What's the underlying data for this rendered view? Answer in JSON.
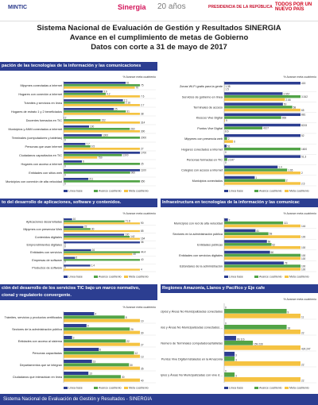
{
  "header": {
    "mintic_logo": "MINTIC",
    "sinergia_logo": "Sinergia",
    "sinergia_years": "20 años",
    "presidencia_logo": "PRESIDENCIA DE LA REPÚBLICA",
    "pais_logo_line1": "TODOS POR UN",
    "pais_logo_line2": "NUEVO PAÍS",
    "title_line1": "Sistema Nacional de Evaluación de Gestión y Resultados SINERGIA",
    "title_line2": "Avance en el cumplimiento de metas de Gobierno",
    "title_line3": "Datos con corte a 31 de mayo de 2017"
  },
  "sections": {
    "s1": "pación de las tecnologías de la información y las comunicaciones",
    "s2": "to del desarrollo de aplicaciones, software y contenidos.",
    "s3": "Infraestructura en tecnologías de la información y las comunicac",
    "s4": "ción del desarrollo de los servicios TIC bajo un marco normativo,",
    "s4b": "cional y regulatorio convergente.",
    "s5": "Regiones Amazonía, Llanos y Pacífico y Eje cafe"
  },
  "footer": {
    "text": "Sistema Nacional de Evaluación de Gestión y Resultados - SINERGIA"
  },
  "colors": {
    "linea_base": "#2c3e91",
    "avance": "#52a447",
    "meta": "#f5c342",
    "band": "#2c3e91",
    "red": "#d9261c"
  },
  "chart_data": [
    {
      "id": "c1",
      "type": "bar",
      "pct_header": "% Avance meta cuatrienio",
      "categories": [
        "Mipymes conectadas a internet",
        "Hogares con conexión a internet",
        "Trámites y servicios en línea",
        "Hogares de estrato 1 y 2 beneficiados",
        "Docentes formados en TIC",
        "Municipios y ANM conectados a internet",
        "Terminales (computadores y tabletas)",
        "Personas que usan internet",
        "Ciudadanos capacitados en TIC",
        "Hogares con acceso a internet",
        "Entidades con sitios web",
        "Municipios con conexión de alta velocidad"
      ],
      "series": [
        {
          "name": "Línea base",
          "values": [
            61,
            3.9,
            2.1,
            25,
            2,
            100,
            1000,
            7.7,
            1700,
            6,
            1100,
            211
          ]
        },
        {
          "name": "Avance cuatrienio",
          "values": [
            75,
            4.2,
            2.16,
            31,
            152,
            260,
            2000,
            9.5,
            1300,
            25,
            960,
            650
          ]
        },
        {
          "name": "Meta cuatrienio",
          "values": [
            70,
            7.6,
            2.7,
            38,
            314,
            300,
            0,
            27,
            750,
            0,
            0,
            0
          ]
        }
      ],
      "pct": [
        "",
        "",
        "",
        "",
        "",
        "",
        "",
        "",
        "",
        "",
        "",
        ""
      ],
      "legend": [
        "Línea base",
        "Avance cuatrienio",
        "Meta cuatrienio"
      ]
    },
    {
      "id": "c2",
      "type": "bar",
      "pct_header": "% Avance meta cuatrienio",
      "categories": [
        "Zonas Wi-Fi gratis para la gente",
        "Servicios de gobierno en línea",
        "Terminales de acceso",
        "Kioscos Vive Digital",
        "Puntos Vive Digital",
        "Mipymes con presencia web",
        "Hogares conectados a internet",
        "Personas formadas en TIC",
        "Colegios con acceso a internet",
        "Municipios conectados"
      ],
      "series": [
        {
          "name": "Línea base",
          "values": [
            415,
            2.557,
            50,
            881,
            8215,
            52,
            51,
            51.3,
            1.4,
            1.0
          ]
        },
        {
          "name": "Avance cuatrienio",
          "values": [
            1.38,
            3.342,
            58,
            658,
            4107,
            2,
            1600,
            2.047,
            1.65,
            2.0
          ]
        },
        {
          "name": "Meta cuatrienio",
          "values": [
            1.5,
            2.66,
            65,
            9,
            8.6,
            6,
            0,
            0,
            2.0,
            2.5
          ]
        }
      ],
      "pct": [
        "",
        "",
        "",
        "",
        "",
        "",
        "",
        "",
        "",
        ""
      ],
      "legend": [
        "Línea base",
        "Avance cuatrienio",
        "Meta cuatrienio"
      ]
    },
    {
      "id": "c3",
      "type": "bar",
      "pct_header": "% Avance meta cuatrienio",
      "categories": [
        "Aplicaciones desarrolladas",
        "Mipymes con presencia Web",
        "Contenidos digitales",
        "Emprendimientos digitales",
        "Entidades con servicios",
        "Empresas de software",
        "Productos de software"
      ],
      "series": [
        {
          "name": "Línea base",
          "values": [
            10,
            22,
            130,
            36,
            16,
            6,
            1.4
          ]
        },
        {
          "name": "Avance cuatrienio",
          "values": [
            71.8,
            30,
            142,
            0,
            44.4,
            40,
            0
          ]
        },
        {
          "name": "Meta cuatrienio",
          "values": [
            90,
            85,
            164,
            0,
            40,
            0,
            4.0
          ]
        }
      ],
      "pct": [
        "",
        "",
        "",
        "",
        "",
        "",
        ""
      ],
      "legend": [
        "Línea base",
        "Avance cuatrienio",
        "Meta cuatrienio"
      ]
    },
    {
      "id": "c4",
      "type": "bar",
      "pct_header": "% Avance meta cuatrienio",
      "categories": [
        "Municipios con red de alta velocidad",
        "Sectores en la administración pública",
        "Entidades públicas",
        "Entidades con servicios digitales",
        "Estándares de la administración"
      ],
      "series": [
        {
          "name": "Línea base",
          "values": [
            7,
            41,
            56,
            60,
            78
          ]
        },
        {
          "name": "Avance cuatrienio",
          "values": [
            111,
            58,
            62,
            100,
            100
          ]
        },
        {
          "name": "Meta cuatrienio",
          "values": [
            144,
            100,
            100,
            100,
            100
          ]
        }
      ],
      "pct": [
        "",
        "",
        "",
        "",
        ""
      ],
      "legend": [
        "Línea base",
        "Avance cuatrienio",
        "Meta cuatrienio"
      ]
    },
    {
      "id": "c5",
      "type": "bar",
      "pct_header": "% Avance meta cuatrienio",
      "categories": [
        "Trámites, servicios y productos certificados",
        "Sectores de la administración pública",
        "Entidades con acceso al sistema",
        "Personas capacitadas",
        "Departamentos que se integran",
        "Ciudadanos que interactúan en línea"
      ],
      "series": [
        {
          "name": "Línea base",
          "values": [
            4,
            9,
            3,
            6,
            13,
            13
          ]
        },
        {
          "name": "Avance cuatrienio",
          "values": [
            8,
            26,
            22,
            12,
            30,
            30
          ]
        },
        {
          "name": "Meta cuatrienio",
          "values": [
            10,
            30,
            27,
            13,
            35,
            40
          ]
        }
      ],
      "pct": [
        "",
        "",
        "",
        "",
        "",
        ""
      ],
      "legend": [
        "Línea base",
        "Avance cuatrienio",
        "Meta cuatrienio"
      ]
    },
    {
      "id": "c6",
      "type": "bar",
      "pct_header": "% Avance meta cuatrienio",
      "categories": [
        "Municipios y Áreas No Municipalizadas conectados",
        "Municipios y Áreas No Municipalizadas conectados a la red",
        "Número de Terminales computadoras/tabletas",
        "Puntos Vive Digital instalados en la Amazonía",
        "Municipios y Áreas No Municipalizadas con vive digital"
      ],
      "series": [
        {
          "name": "Línea base",
          "values": [
            0,
            0,
            66.116,
            3,
            0
          ]
        },
        {
          "name": "Avance cuatrienio",
          "values": [
            9,
            18,
            159.228,
            3,
            3
          ]
        },
        {
          "name": "Meta cuatrienio",
          "values": [
            11,
            22,
            424.247,
            22,
            22
          ]
        }
      ],
      "pct": [
        "",
        "",
        "",
        "",
        ""
      ],
      "legend": [
        "Línea base",
        "Avance cuatrienio",
        "Meta cuatrienio"
      ]
    }
  ]
}
